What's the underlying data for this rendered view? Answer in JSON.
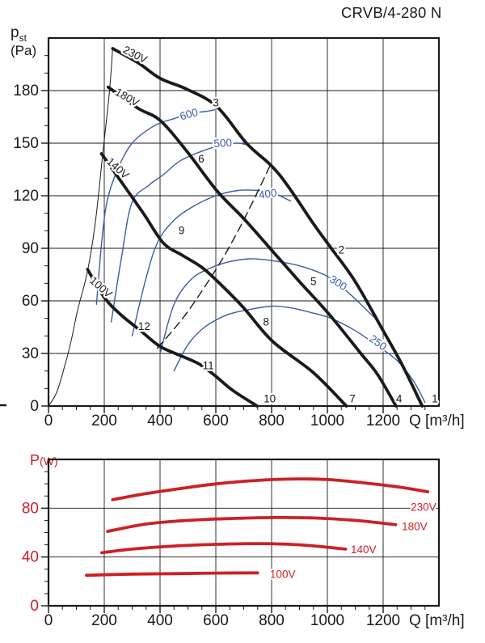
{
  "title": "CRVB/4-280 N",
  "colors": {
    "black": "#1a1a1a",
    "blue": "#3a5da9",
    "red": "#cd2026"
  },
  "pressure_axis": {
    "main": "p",
    "sub": "st",
    "unit": "(Pa)"
  },
  "power_axis": {
    "main": "P",
    "unit": "(W)"
  },
  "chart_data": [
    {
      "type": "line",
      "name": "pressure-flow-curves",
      "xlabel": "Q [m³/h]",
      "ylabel": "pst (Pa)",
      "xlim": [
        0,
        1400
      ],
      "ylim": [
        0,
        210
      ],
      "x_tick_labels": [
        0,
        200,
        400,
        600,
        800,
        1000,
        1200
      ],
      "y_tick_labels": [
        0,
        30,
        60,
        90,
        120,
        150,
        180
      ],
      "x_minor": 50,
      "y_minor": 10,
      "grid_x": [
        200,
        400,
        600,
        800,
        1000,
        1200
      ],
      "grid_y": [
        30,
        60,
        90,
        120,
        150,
        180
      ],
      "tick_color": "black",
      "series": [
        {
          "name": "rpm-600",
          "color": "blue",
          "width": 1.4,
          "points": [
            [
              172,
              58
            ],
            [
              190,
              92
            ],
            [
              209,
              116
            ],
            [
              245,
              134
            ],
            [
              300,
              150
            ],
            [
              380,
              160
            ],
            [
              450,
              164
            ],
            [
              507,
              167
            ],
            [
              560,
              168
            ],
            [
              595,
              169
            ]
          ]
        },
        {
          "name": "rpm-500",
          "color": "blue",
          "width": 1.4,
          "points": [
            [
              225,
              48
            ],
            [
              262,
              85
            ],
            [
              299,
              116
            ],
            [
              360,
              126
            ],
            [
              412,
              132
            ],
            [
              473,
              140
            ],
            [
              560,
              146
            ],
            [
              626,
              149
            ],
            [
              680,
              150
            ],
            [
              712,
              149
            ]
          ]
        },
        {
          "name": "rpm-400",
          "color": "blue",
          "width": 1.4,
          "points": [
            [
              300,
              40
            ],
            [
              345,
              70
            ],
            [
              390,
              93
            ],
            [
              450,
              106
            ],
            [
              520,
              114
            ],
            [
              600,
              120
            ],
            [
              680,
              123
            ],
            [
              750,
              123
            ],
            [
              800,
              122
            ],
            [
              868,
              117
            ]
          ]
        },
        {
          "name": "rpm-300",
          "color": "blue",
          "width": 1.4,
          "points": [
            [
              400,
              30
            ],
            [
              450,
              58
            ],
            [
              510,
              72
            ],
            [
              570,
              78
            ],
            [
              640,
              82
            ],
            [
              720,
              84
            ],
            [
              800,
              83
            ],
            [
              900,
              80
            ],
            [
              1000,
              74
            ],
            [
              1080,
              64
            ],
            [
              1165,
              51
            ]
          ]
        },
        {
          "name": "rpm-250",
          "color": "blue",
          "width": 1.4,
          "points": [
            [
              450,
              20
            ],
            [
              500,
              35
            ],
            [
              560,
              45
            ],
            [
              640,
              52
            ],
            [
              720,
              55
            ],
            [
              800,
              57
            ],
            [
              870,
              56
            ],
            [
              950,
              53
            ],
            [
              1014,
              50
            ],
            [
              1100,
              43
            ],
            [
              1174,
              35
            ],
            [
              1250,
              26
            ],
            [
              1310,
              14
            ],
            [
              1350,
              2
            ]
          ]
        },
        {
          "name": "system-dashed-line",
          "color": "black",
          "width": 1.4,
          "dash": "10 6",
          "points": [
            [
              390,
              33
            ],
            [
              450,
              44
            ],
            [
              500,
              54
            ],
            [
              560,
              68
            ],
            [
              620,
              83
            ],
            [
              680,
              100
            ],
            [
              740,
              119
            ],
            [
              800,
              139
            ]
          ]
        },
        {
          "name": "stall-line",
          "color": "black",
          "width": 1,
          "points": [
            [
              0,
              0
            ],
            [
              30,
              8
            ],
            [
              60,
              24
            ],
            [
              81,
              37
            ],
            [
              105,
              55
            ],
            [
              140,
              77
            ],
            [
              168,
              105
            ],
            [
              194,
              143
            ],
            [
              214,
              172
            ],
            [
              224,
              190
            ],
            [
              230,
              204
            ]
          ]
        },
        {
          "name": "curve-230V",
          "color": "black",
          "width": 3.8,
          "points": [
            [
              230,
              204
            ],
            [
              320,
              196
            ],
            [
              400,
              187
            ],
            [
              493,
              181
            ],
            [
              603,
              171
            ],
            [
              710,
              150
            ],
            [
              800,
              137
            ],
            [
              861,
              125
            ],
            [
              950,
              104
            ],
            [
              1014,
              90
            ],
            [
              1100,
              71
            ],
            [
              1200,
              43
            ],
            [
              1270,
              23
            ],
            [
              1340,
              0
            ]
          ]
        },
        {
          "name": "curve-180V",
          "color": "black",
          "width": 3.8,
          "points": [
            [
              214,
              182
            ],
            [
              320,
              170
            ],
            [
              400,
              163
            ],
            [
              493,
              146
            ],
            [
              603,
              123
            ],
            [
              700,
              107
            ],
            [
              800,
              89
            ],
            [
              900,
              71
            ],
            [
              1008,
              52
            ],
            [
              1120,
              30
            ],
            [
              1180,
              18
            ],
            [
              1246,
              0
            ]
          ]
        },
        {
          "name": "curve-140V",
          "color": "black",
          "width": 3.8,
          "points": [
            [
              190,
              144
            ],
            [
              252,
              130
            ],
            [
              340,
              110
            ],
            [
              412,
              93
            ],
            [
              480,
              86
            ],
            [
              551,
              79
            ],
            [
              620,
              69
            ],
            [
              700,
              56
            ],
            [
              803,
              37
            ],
            [
              950,
              19
            ],
            [
              1068,
              0
            ]
          ]
        },
        {
          "name": "curve-100V",
          "color": "black",
          "width": 3.8,
          "points": [
            [
              140,
              78
            ],
            [
              200,
              62
            ],
            [
              260,
              52
            ],
            [
              330,
              43
            ],
            [
              400,
              34
            ],
            [
              470,
              29
            ],
            [
              540,
              24
            ],
            [
              600,
              17
            ],
            [
              660,
              9
            ],
            [
              748,
              0
            ]
          ]
        }
      ],
      "labels": [
        {
          "text": "230V",
          "q": 264,
          "p": 202,
          "rot": 27,
          "color": "black",
          "anchor": "start"
        },
        {
          "text": "180V",
          "q": 236,
          "p": 178,
          "rot": 30,
          "color": "black",
          "anchor": "start"
        },
        {
          "text": "140V",
          "q": 206,
          "p": 139,
          "rot": 42,
          "color": "black",
          "anchor": "start"
        },
        {
          "text": "100V",
          "q": 145,
          "p": 71,
          "rot": 41,
          "color": "black",
          "anchor": "start"
        },
        {
          "text": "600",
          "q": 507,
          "p": 164.5,
          "rot": -15,
          "color": "blue",
          "anchor": "middle"
        },
        {
          "text": "500",
          "q": 626,
          "p": 148,
          "rot": -4,
          "color": "blue",
          "anchor": "middle"
        },
        {
          "text": "400",
          "q": 788,
          "p": 119,
          "rot": -8,
          "color": "blue",
          "anchor": "middle"
        },
        {
          "text": "300",
          "q": 1032,
          "p": 68.5,
          "rot": 33,
          "color": "blue",
          "anchor": "middle"
        },
        {
          "text": "250",
          "q": 1174,
          "p": 34.5,
          "rot": 36,
          "color": "blue",
          "anchor": "middle"
        },
        {
          "text": "1",
          "q": 1385,
          "p": 2,
          "rot": 0,
          "color": "black",
          "anchor": "middle"
        },
        {
          "text": "2",
          "q": 1050,
          "p": 87,
          "rot": 0,
          "color": "black",
          "anchor": "middle"
        },
        {
          "text": "3",
          "q": 600,
          "p": 171,
          "rot": 0,
          "color": "black",
          "anchor": "middle"
        },
        {
          "text": "4",
          "q": 1257,
          "p": 2,
          "rot": 0,
          "color": "black",
          "anchor": "middle"
        },
        {
          "text": "5",
          "q": 950,
          "p": 69,
          "rot": 0,
          "color": "black",
          "anchor": "middle"
        },
        {
          "text": "6",
          "q": 548,
          "p": 139,
          "rot": 0,
          "color": "black",
          "anchor": "middle"
        },
        {
          "text": "7",
          "q": 1090,
          "p": 2,
          "rot": 0,
          "color": "black",
          "anchor": "middle"
        },
        {
          "text": "8",
          "q": 780,
          "p": 46,
          "rot": 0,
          "color": "black",
          "anchor": "middle"
        },
        {
          "text": "9",
          "q": 477,
          "p": 98,
          "rot": 0,
          "color": "black",
          "anchor": "middle"
        },
        {
          "text": "10",
          "q": 793,
          "p": 2,
          "rot": 0,
          "color": "black",
          "anchor": "middle"
        },
        {
          "text": "11",
          "q": 573,
          "p": 21,
          "rot": 0,
          "color": "black",
          "anchor": "middle"
        },
        {
          "text": "12",
          "q": 343,
          "p": 43.5,
          "rot": 0,
          "color": "black",
          "anchor": "middle"
        }
      ]
    },
    {
      "type": "line",
      "name": "power-flow-curves",
      "xlabel": "Q [m³/h]",
      "ylabel": "P (W)",
      "xlim": [
        0,
        1400
      ],
      "ylim": [
        0,
        120
      ],
      "x_tick_labels": [
        0,
        200,
        400,
        600,
        800,
        1000,
        1200
      ],
      "y_tick_labels": [
        0,
        40,
        80
      ],
      "x_minor": 50,
      "y_minor": 10,
      "grid_x": [
        200,
        400,
        600,
        800,
        1000,
        1200
      ],
      "grid_y": [
        40,
        80
      ],
      "tick_color_y": "red",
      "tick_color": "black",
      "series": [
        {
          "name": "power-230V",
          "color": "red",
          "width": 3.8,
          "points": [
            [
              230,
              87
            ],
            [
              350,
              92
            ],
            [
              500,
              97
            ],
            [
              603,
              100
            ],
            [
              700,
              102
            ],
            [
              806,
              103.5
            ],
            [
              900,
              104
            ],
            [
              1000,
              103.5
            ],
            [
              1100,
              101.5
            ],
            [
              1250,
              97.5
            ],
            [
              1360,
              93.5
            ]
          ]
        },
        {
          "name": "power-180V",
          "color": "red",
          "width": 3.8,
          "points": [
            [
              212,
              61
            ],
            [
              350,
              67
            ],
            [
              500,
              70
            ],
            [
              650,
              71.5
            ],
            [
              800,
              72.3
            ],
            [
              950,
              72
            ],
            [
              1100,
              70
            ],
            [
              1245,
              66.5
            ]
          ]
        },
        {
          "name": "power-140V",
          "color": "red",
          "width": 3.8,
          "points": [
            [
              191,
              43.5
            ],
            [
              300,
              46.5
            ],
            [
              450,
              49
            ],
            [
              600,
              50.4
            ],
            [
              750,
              51
            ],
            [
              900,
              50
            ],
            [
              1065,
              46.5
            ]
          ]
        },
        {
          "name": "power-100V",
          "color": "red",
          "width": 3.8,
          "points": [
            [
              136,
              25
            ],
            [
              300,
              26
            ],
            [
              450,
              26.3
            ],
            [
              600,
              26.8
            ],
            [
              750,
              27
            ]
          ]
        }
      ],
      "labels": [
        {
          "text": "230V",
          "q": 1299,
          "p": 78,
          "rot": 0,
          "color": "red",
          "anchor": "start"
        },
        {
          "text": "180V",
          "q": 1267,
          "p": 62,
          "rot": 0,
          "color": "red",
          "anchor": "start"
        },
        {
          "text": "140V",
          "q": 1084,
          "p": 43,
          "rot": 0,
          "color": "red",
          "anchor": "start"
        },
        {
          "text": "100V",
          "q": 794,
          "p": 23,
          "rot": 0,
          "color": "red",
          "anchor": "start"
        }
      ]
    }
  ]
}
